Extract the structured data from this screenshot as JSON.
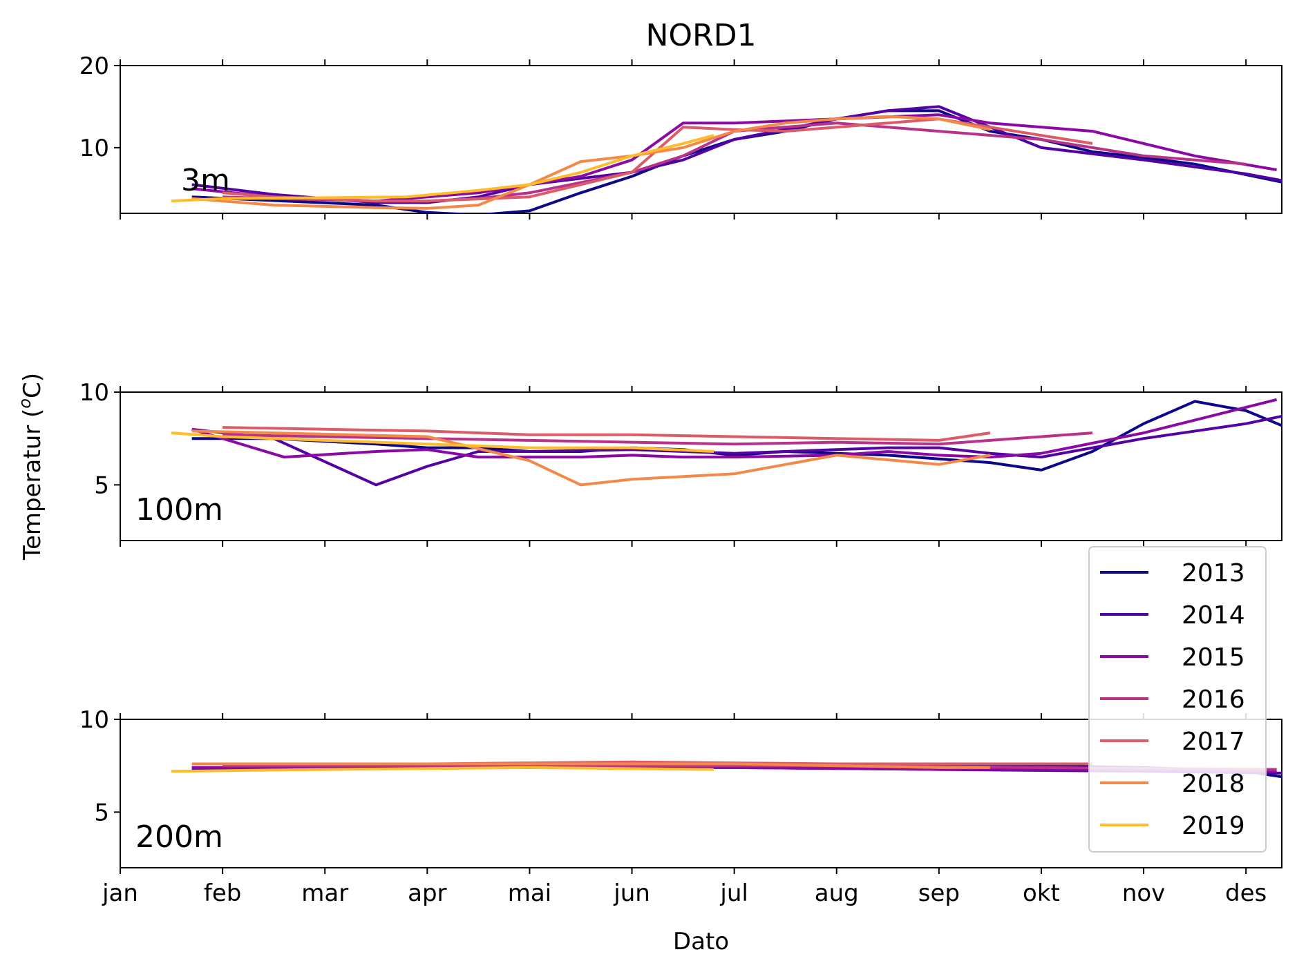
{
  "chart_data": {
    "type": "line",
    "title": "NORD1",
    "xlabel": "Dato",
    "ylabel": "Temperatur (°C)",
    "ylabel_parts": {
      "prefix": "Temperatur (",
      "sup": "o",
      "suffix": "C)"
    },
    "x_unit": "month",
    "xlim": [
      0,
      11.35
    ],
    "x_ticks": [
      0,
      1,
      2,
      3,
      4,
      5,
      6,
      7,
      8,
      9,
      10,
      11
    ],
    "x_tick_labels": [
      "jan",
      "feb",
      "mar",
      "apr",
      "mai",
      "jun",
      "jul",
      "aug",
      "sep",
      "okt",
      "nov",
      "des"
    ],
    "legend_position": "right",
    "colors": {
      "2013": "#0d0887",
      "2014": "#5302a3",
      "2015": "#8b0aa5",
      "2016": "#b83289",
      "2017": "#db5c68",
      "2018": "#f48849",
      "2019": "#febc2a"
    },
    "legend": [
      "2013",
      "2014",
      "2015",
      "2016",
      "2017",
      "2018",
      "2019"
    ],
    "panels": [
      {
        "label": "3m",
        "ylim": [
          2,
          20
        ],
        "y_ticks": [
          10,
          20
        ],
        "series": [
          {
            "name": "2013",
            "x": [
              0.7,
              2.5,
              3.0,
              3.5,
              4.0,
              4.5,
              5.0,
              5.5,
              6.0,
              6.5,
              7.0,
              7.5,
              8.0,
              8.5,
              9.0,
              9.5,
              10.0,
              10.5,
              11.35
            ],
            "y": [
              4.0,
              3.0,
              2.1,
              1.8,
              2.3,
              4.5,
              6.5,
              9.0,
              11.0,
              12.0,
              13.5,
              14.5,
              14.5,
              12.0,
              11.0,
              9.5,
              8.8,
              8.0,
              5.8
            ]
          },
          {
            "name": "2014",
            "x": [
              0.7,
              1.5,
              2.5,
              3.0,
              3.5,
              4.0,
              5.0,
              5.5,
              6.0,
              7.0,
              7.5,
              8.0,
              8.5,
              9.0,
              10.0,
              11.0,
              11.35
            ],
            "y": [
              5.5,
              4.3,
              3.3,
              3.3,
              4.0,
              5.5,
              7.0,
              8.5,
              11.0,
              13.5,
              14.5,
              15.0,
              12.5,
              10.0,
              8.5,
              6.8,
              6.0
            ]
          },
          {
            "name": "2015",
            "x": [
              0.7,
              1.5,
              2.5,
              3.5,
              4.5,
              5.0,
              5.5,
              6.0,
              7.0,
              8.0,
              8.5,
              9.5,
              10.5,
              11.3
            ],
            "y": [
              5.0,
              4.0,
              3.5,
              4.5,
              6.5,
              8.5,
              13.0,
              13.0,
              13.5,
              14.0,
              13.0,
              12.0,
              9.0,
              7.3
            ]
          },
          {
            "name": "2016",
            "x": [
              1.0,
              1.5,
              2.5,
              3.0,
              3.5,
              4.0,
              5.0,
              5.5,
              6.0,
              7.0,
              8.0,
              9.0,
              9.5,
              10.0,
              11.0
            ],
            "y": [
              4.0,
              3.8,
              3.5,
              3.5,
              3.8,
              4.5,
              7.0,
              9.0,
              12.0,
              13.0,
              12.0,
              11.0,
              10.0,
              9.0,
              8.0
            ]
          },
          {
            "name": "2017",
            "x": [
              1.0,
              1.5,
              2.5,
              3.0,
              4.0,
              4.5,
              5.0,
              5.5,
              6.0,
              6.5,
              7.0,
              7.5,
              8.0,
              8.5,
              9.0,
              9.5
            ],
            "y": [
              4.5,
              4.0,
              3.5,
              3.5,
              4.0,
              5.5,
              7.0,
              12.5,
              12.2,
              12.0,
              12.5,
              13.0,
              13.5,
              12.5,
              11.5,
              10.5
            ]
          },
          {
            "name": "2018",
            "x": [
              0.7,
              1.5,
              2.5,
              3.0,
              3.5,
              4.0,
              4.5,
              5.0,
              5.5,
              6.0,
              6.5,
              7.0,
              7.5,
              8.0,
              8.5
            ],
            "y": [
              3.8,
              3.0,
              2.7,
              2.6,
              3.0,
              5.5,
              8.3,
              9.0,
              10.0,
              12.0,
              13.0,
              13.5,
              13.8,
              13.5,
              12.2
            ]
          },
          {
            "name": "2019",
            "x": [
              0.5,
              1.0,
              2.0,
              2.8,
              3.5,
              4.0,
              4.5,
              5.0,
              5.5,
              5.8
            ],
            "y": [
              3.5,
              3.8,
              3.9,
              4.0,
              4.8,
              5.5,
              7.0,
              9.0,
              10.5,
              11.5
            ]
          }
        ]
      },
      {
        "label": "100m",
        "ylim": [
          2,
          10
        ],
        "y_ticks": [
          5,
          10
        ],
        "series": [
          {
            "name": "2013",
            "x": [
              0.7,
              1.5,
              2.5,
              3.0,
              3.5,
              4.0,
              4.5,
              5.0,
              5.5,
              6.0,
              6.5,
              7.0,
              7.5,
              8.0,
              8.5,
              9.0,
              9.5,
              10.0,
              10.5,
              11.0,
              11.35
            ],
            "y": [
              7.5,
              7.5,
              7.2,
              7.0,
              7.0,
              6.8,
              6.8,
              7.0,
              6.9,
              6.6,
              6.8,
              6.7,
              6.6,
              6.4,
              6.2,
              5.8,
              6.8,
              8.3,
              9.5,
              9.0,
              8.2
            ]
          },
          {
            "name": "2014",
            "x": [
              0.7,
              1.5,
              2.5,
              3.0,
              3.5,
              4.0,
              5.0,
              5.5,
              6.0,
              7.0,
              7.5,
              8.0,
              8.5,
              9.0,
              9.5,
              10.0,
              11.0,
              11.35
            ],
            "y": [
              8.0,
              7.5,
              5.0,
              6.0,
              6.8,
              6.8,
              6.9,
              6.8,
              6.7,
              6.9,
              7.0,
              7.0,
              6.7,
              6.5,
              7.0,
              7.5,
              8.3,
              8.7
            ]
          },
          {
            "name": "2015",
            "x": [
              0.7,
              1.0,
              1.6,
              2.5,
              3.0,
              3.5,
              4.5,
              5.0,
              5.5,
              6.0,
              7.0,
              7.5,
              8.0,
              8.5,
              9.0,
              10.0,
              11.3
            ],
            "y": [
              8.0,
              7.5,
              6.5,
              6.8,
              6.9,
              6.5,
              6.5,
              6.6,
              6.5,
              6.5,
              6.6,
              6.8,
              6.6,
              6.5,
              6.7,
              7.8,
              9.6
            ]
          },
          {
            "name": "2016",
            "x": [
              1.0,
              2.0,
              3.0,
              4.0,
              5.0,
              6.0,
              7.0,
              8.0,
              8.5,
              9.0,
              9.5
            ],
            "y": [
              7.7,
              7.6,
              7.5,
              7.4,
              7.3,
              7.2,
              7.3,
              7.2,
              7.4,
              7.6,
              7.8
            ]
          },
          {
            "name": "2017",
            "x": [
              1.0,
              2.0,
              3.0,
              4.0,
              5.0,
              6.0,
              7.0,
              8.0,
              8.5
            ],
            "y": [
              8.1,
              8.0,
              7.9,
              7.7,
              7.7,
              7.6,
              7.5,
              7.4,
              7.8
            ]
          },
          {
            "name": "2018",
            "x": [
              0.7,
              1.5,
              3.0,
              4.0,
              4.5,
              5.0,
              6.0,
              7.0,
              8.0,
              8.5
            ],
            "y": [
              7.9,
              7.8,
              7.6,
              6.3,
              5.0,
              5.3,
              5.6,
              6.6,
              6.1,
              6.6
            ]
          },
          {
            "name": "2019",
            "x": [
              0.5,
              1.0,
              2.0,
              3.0,
              4.0,
              5.0,
              5.8
            ],
            "y": [
              7.8,
              7.6,
              7.4,
              7.2,
              7.0,
              7.0,
              6.8
            ]
          }
        ]
      },
      {
        "label": "200m",
        "ylim": [
          2,
          10
        ],
        "y_ticks": [
          5,
          10
        ],
        "series": [
          {
            "name": "2013",
            "x": [
              0.7,
              2.0,
              3.0,
              4.0,
              5.0,
              6.0,
              7.0,
              8.0,
              9.0,
              10.0,
              11.0,
              11.35
            ],
            "y": [
              7.4,
              7.4,
              7.5,
              7.6,
              7.6,
              7.6,
              7.5,
              7.5,
              7.5,
              7.4,
              7.2,
              6.9
            ]
          },
          {
            "name": "2014",
            "x": [
              0.7,
              2.0,
              4.0,
              6.0,
              8.0,
              10.0,
              11.35
            ],
            "y": [
              7.3,
              7.4,
              7.4,
              7.4,
              7.3,
              7.2,
              7.1
            ]
          },
          {
            "name": "2015",
            "x": [
              0.7,
              2.0,
              4.0,
              6.0,
              8.0,
              10.0,
              11.3
            ],
            "y": [
              7.4,
              7.4,
              7.4,
              7.4,
              7.3,
              7.3,
              7.2
            ]
          },
          {
            "name": "2016",
            "x": [
              1.0,
              3.0,
              5.0,
              7.0,
              9.0,
              11.3
            ],
            "y": [
              7.5,
              7.5,
              7.5,
              7.5,
              7.4,
              7.3
            ]
          },
          {
            "name": "2017",
            "x": [
              1.0,
              3.0,
              5.0,
              7.0,
              9.0,
              9.5
            ],
            "y": [
              7.6,
              7.6,
              7.7,
              7.6,
              7.6,
              7.6
            ]
          },
          {
            "name": "2018",
            "x": [
              0.7,
              2.0,
              4.0,
              6.0,
              8.0,
              8.5
            ],
            "y": [
              7.6,
              7.6,
              7.6,
              7.6,
              7.4,
              7.4
            ]
          },
          {
            "name": "2019",
            "x": [
              0.5,
              2.0,
              4.0,
              5.8
            ],
            "y": [
              7.2,
              7.3,
              7.4,
              7.3
            ]
          }
        ]
      }
    ]
  }
}
